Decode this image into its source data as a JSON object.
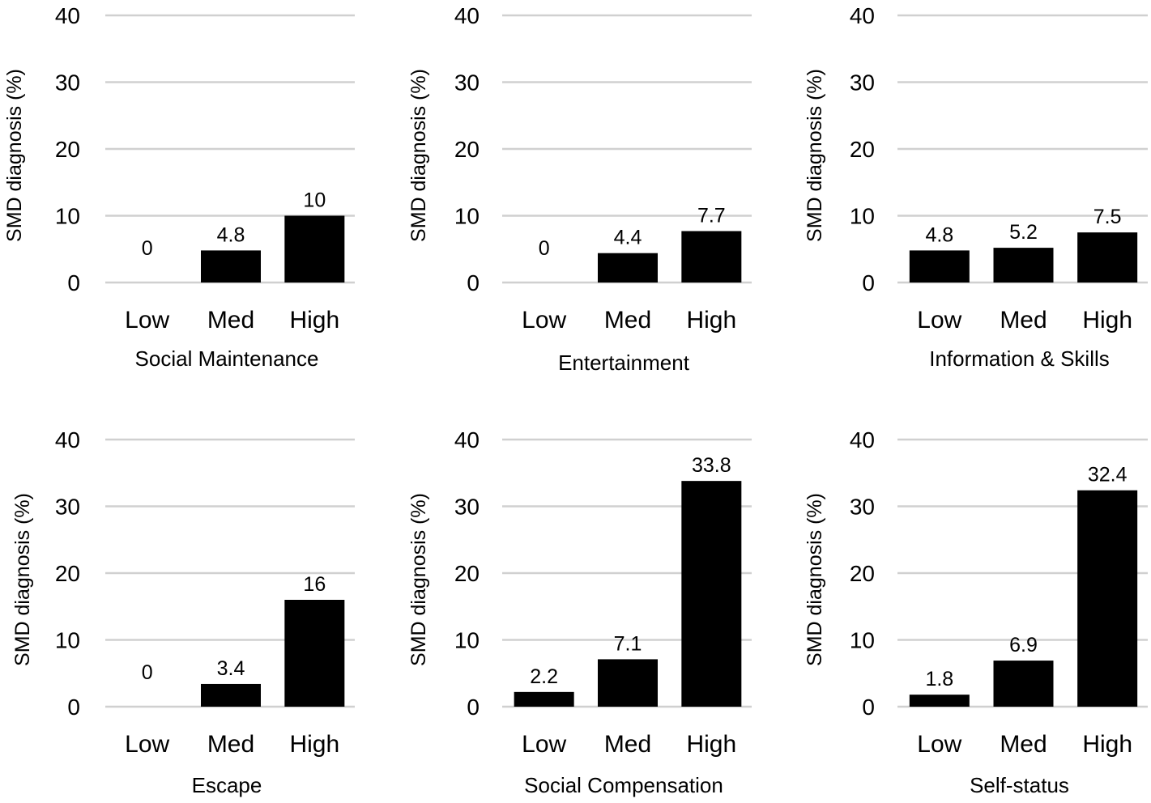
{
  "bar_color": "#000000",
  "grid_color": "#d0d0d0",
  "chart_data": [
    {
      "type": "bar",
      "xlabel": "Social Maintenance",
      "ylabel": "SMD diagnosis (%)",
      "categories": [
        "Low",
        "Med",
        "High"
      ],
      "values": [
        0,
        4.8,
        10
      ],
      "value_labels": [
        "0",
        "4.8",
        "10"
      ],
      "ylim": [
        0,
        40
      ],
      "yticks": [
        "0",
        "10",
        "20",
        "30",
        "40"
      ],
      "grid": true
    },
    {
      "type": "bar",
      "xlabel": "Entertainment",
      "ylabel": "SMD diagnosis (%)",
      "categories": [
        "Low",
        "Med",
        "High"
      ],
      "values": [
        0,
        4.4,
        7.7
      ],
      "value_labels": [
        "0",
        "4.4",
        "7.7"
      ],
      "ylim": [
        0,
        40
      ],
      "yticks": [
        "0",
        "10",
        "20",
        "30",
        "40"
      ],
      "grid": true
    },
    {
      "type": "bar",
      "xlabel": "Information & Skills",
      "ylabel": "SMD diagnosis (%)",
      "categories": [
        "Low",
        "Med",
        "High"
      ],
      "values": [
        4.8,
        5.2,
        7.5
      ],
      "value_labels": [
        "4.8",
        "5.2",
        "7.5"
      ],
      "ylim": [
        0,
        40
      ],
      "yticks": [
        "0",
        "10",
        "20",
        "30",
        "40"
      ],
      "grid": true
    },
    {
      "type": "bar",
      "xlabel": "Escape",
      "ylabel": "SMD diagnosis (%)",
      "categories": [
        "Low",
        "Med",
        "High"
      ],
      "values": [
        0,
        3.4,
        16
      ],
      "value_labels": [
        "0",
        "3.4",
        "16"
      ],
      "ylim": [
        0,
        40
      ],
      "yticks": [
        "0",
        "10",
        "20",
        "30",
        "40"
      ],
      "grid": true
    },
    {
      "type": "bar",
      "xlabel": "Social Compensation",
      "ylabel": "SMD diagnosis (%)",
      "categories": [
        "Low",
        "Med",
        "High"
      ],
      "values": [
        2.2,
        7.1,
        33.8
      ],
      "value_labels": [
        "2.2",
        "7.1",
        "33.8"
      ],
      "ylim": [
        0,
        40
      ],
      "yticks": [
        "0",
        "10",
        "20",
        "30",
        "40"
      ],
      "grid": true
    },
    {
      "type": "bar",
      "xlabel": "Self-status",
      "ylabel": "SMD diagnosis (%)",
      "categories": [
        "Low",
        "Med",
        "High"
      ],
      "values": [
        1.8,
        6.9,
        32.4
      ],
      "value_labels": [
        "1.8",
        "6.9",
        "32.4"
      ],
      "ylim": [
        0,
        40
      ],
      "yticks": [
        "0",
        "10",
        "20",
        "30",
        "40"
      ],
      "grid": true
    }
  ]
}
